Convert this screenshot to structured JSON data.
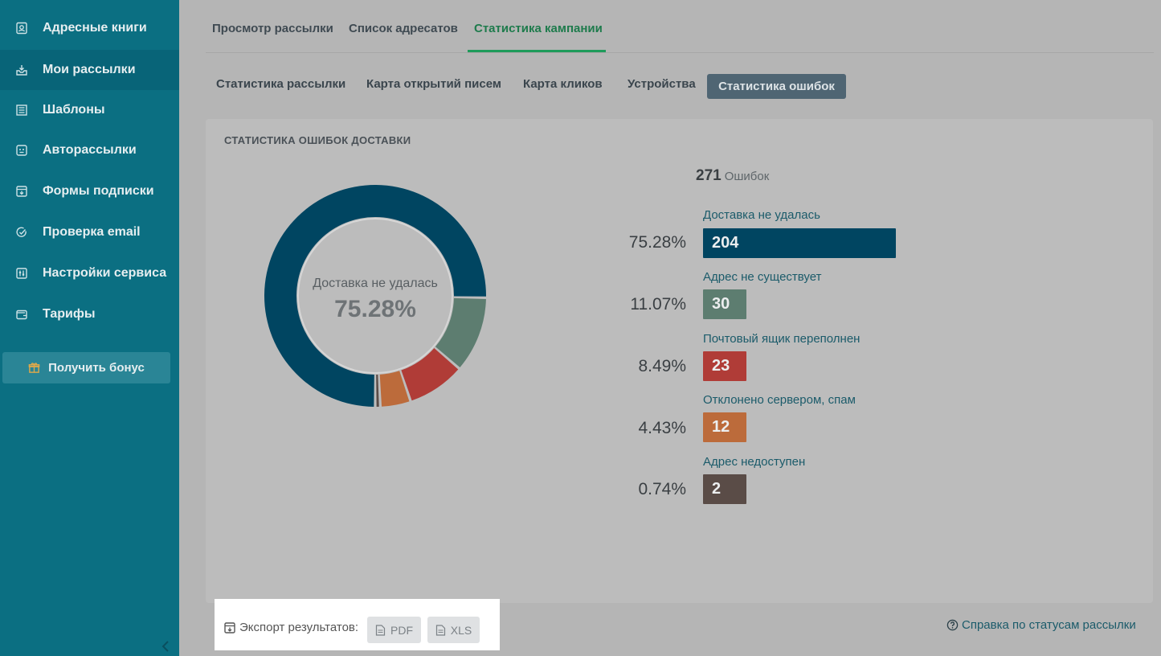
{
  "sidebar": {
    "items": [
      {
        "label": "Адресные книги",
        "icon": "address-book-icon"
      },
      {
        "label": "Мои рассылки",
        "icon": "mailing-icon"
      },
      {
        "label": "Шаблоны",
        "icon": "template-icon"
      },
      {
        "label": "Авторассылки",
        "icon": "automation-icon"
      },
      {
        "label": "Формы подписки",
        "icon": "form-icon"
      },
      {
        "label": "Проверка email",
        "icon": "check-icon"
      },
      {
        "label": "Настройки сервиса",
        "icon": "settings-icon"
      },
      {
        "label": "Тарифы",
        "icon": "wallet-icon"
      }
    ],
    "bonus_label": "Получить бонус"
  },
  "tabs": {
    "view": "Просмотр рассылки",
    "recipients": "Список адресатов",
    "stats": "Статистика кампании"
  },
  "subtabs": {
    "mailing_stats": "Статистика рассылки",
    "open_map": "Карта открытий писем",
    "click_map": "Карта кликов",
    "devices": "Устройства",
    "error_stats": "Статистика ошибок"
  },
  "card": {
    "title": "СТАТИСТИКА ОШИБОК ДОСТАВКИ",
    "center_label": "Доставка не удалась",
    "center_value": "75.28%",
    "total": "271",
    "total_label": "Ошибок"
  },
  "chart_data": {
    "type": "pie",
    "categories": [
      "Доставка не удалась",
      "Адрес не существует",
      "Почтовый ящик переполнен",
      "Отклонено сервером, спам",
      "Адрес недоступен"
    ],
    "values": [
      204,
      30,
      23,
      12,
      2
    ],
    "percents": [
      "75.28%",
      "11.07%",
      "8.49%",
      "4.43%",
      "0.74%"
    ],
    "colors": [
      "#004561",
      "#5d7d70",
      "#b03c37",
      "#bc6b3b",
      "#5a4c47"
    ]
  },
  "footer": {
    "export_label": "Экспорт результатов:",
    "pdf": "PDF",
    "xls": "XLS",
    "help": "Справка по статусам рассылки"
  }
}
